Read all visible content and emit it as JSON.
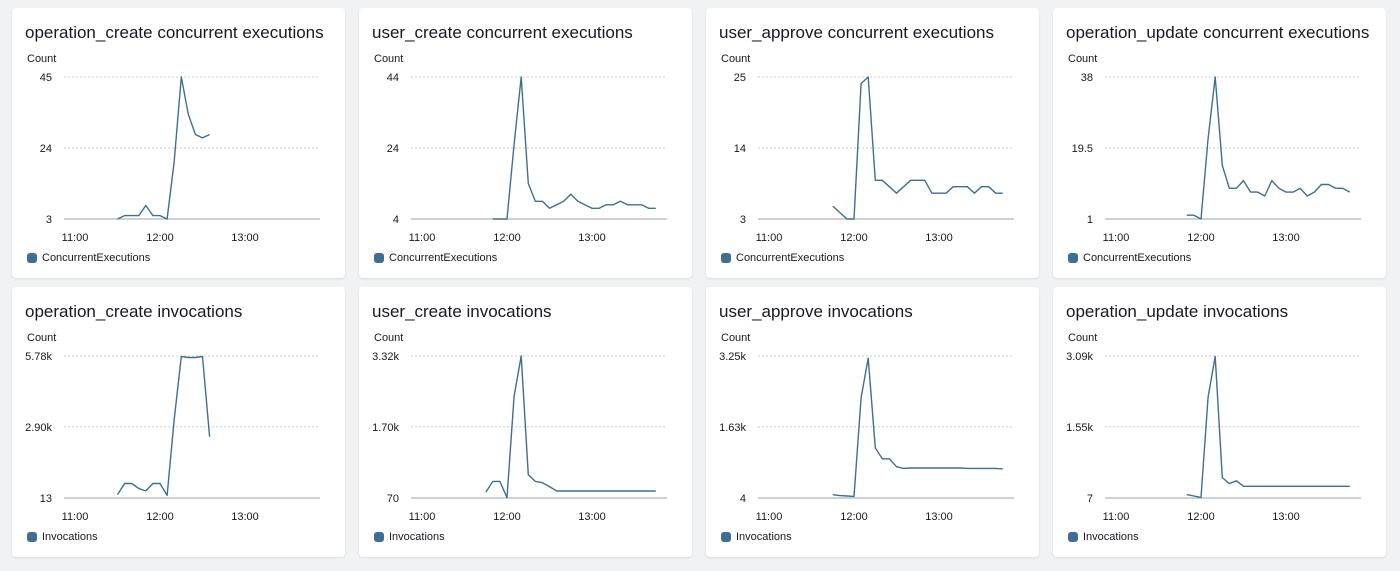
{
  "chart_data": [
    {
      "type": "line",
      "title": "operation_create concurrent executions",
      "ylabel": "Count",
      "ylim": [
        3,
        45
      ],
      "y_ticks": [
        "45",
        "24",
        "3"
      ],
      "y_tick_values": [
        45,
        24,
        3
      ],
      "xlim": [
        "10:48",
        "13:56"
      ],
      "x_ticks": [
        "11:00",
        "12:00",
        "13:00"
      ],
      "grid": true,
      "legend": "bottom-left",
      "color": "#3f6e94",
      "series": [
        {
          "name": "ConcurrentExecutions",
          "x": [
            "11:30",
            "11:35",
            "11:40",
            "11:45",
            "11:50",
            "11:55",
            "12:00",
            "12:05",
            "12:10",
            "12:15",
            "12:20",
            "12:25",
            "12:30",
            "12:35"
          ],
          "y": [
            3,
            4,
            4,
            4,
            7,
            4,
            4,
            3,
            20,
            45,
            34,
            28,
            27,
            28
          ]
        }
      ]
    },
    {
      "type": "line",
      "title": "user_create concurrent executions",
      "ylabel": "Count",
      "ylim": [
        4,
        44
      ],
      "y_ticks": [
        "44",
        "24",
        "4"
      ],
      "y_tick_values": [
        44,
        24,
        4
      ],
      "xlim": [
        "10:48",
        "13:56"
      ],
      "x_ticks": [
        "11:00",
        "12:00",
        "13:00"
      ],
      "grid": true,
      "legend": "bottom-left",
      "color": "#3f6e94",
      "series": [
        {
          "name": "ConcurrentExecutions",
          "x": [
            "11:50",
            "11:55",
            "12:00",
            "12:05",
            "12:10",
            "12:15",
            "12:20",
            "12:25",
            "12:30",
            "12:35",
            "12:40",
            "12:45",
            "12:50",
            "12:55",
            "13:00",
            "13:05",
            "13:10",
            "13:15",
            "13:20",
            "13:25",
            "13:30",
            "13:35",
            "13:40",
            "13:45"
          ],
          "y": [
            4,
            4,
            4,
            25,
            44,
            14,
            9,
            9,
            7,
            8,
            9,
            11,
            9,
            8,
            7,
            7,
            8,
            8,
            9,
            8,
            8,
            8,
            7,
            7
          ]
        }
      ]
    },
    {
      "type": "line",
      "title": "user_approve concurrent executions",
      "ylabel": "Count",
      "ylim": [
        3,
        25
      ],
      "y_ticks": [
        "25",
        "14",
        "3"
      ],
      "y_tick_values": [
        25,
        14,
        3
      ],
      "xlim": [
        "10:48",
        "13:56"
      ],
      "x_ticks": [
        "11:00",
        "12:00",
        "13:00"
      ],
      "grid": true,
      "legend": "bottom-left",
      "color": "#3f6e94",
      "series": [
        {
          "name": "ConcurrentExecutions",
          "x": [
            "11:45",
            "11:50",
            "11:55",
            "12:00",
            "12:05",
            "12:10",
            "12:15",
            "12:20",
            "12:25",
            "12:30",
            "12:35",
            "12:40",
            "12:45",
            "12:50",
            "12:55",
            "13:00",
            "13:05",
            "13:10",
            "13:15",
            "13:20",
            "13:25",
            "13:30",
            "13:35",
            "13:40",
            "13:45"
          ],
          "y": [
            5,
            4,
            3,
            3,
            24,
            25,
            9,
            9,
            8,
            7,
            8,
            9,
            9,
            9,
            7,
            7,
            7,
            8,
            8,
            8,
            7,
            8,
            8,
            7,
            7
          ]
        }
      ]
    },
    {
      "type": "line",
      "title": "operation_update concurrent executions",
      "ylabel": "Count",
      "ylim": [
        1,
        38
      ],
      "y_ticks": [
        "38",
        "19.5",
        "1"
      ],
      "y_tick_values": [
        38,
        19.5,
        1
      ],
      "xlim": [
        "10:48",
        "13:56"
      ],
      "x_ticks": [
        "11:00",
        "12:00",
        "13:00"
      ],
      "grid": true,
      "legend": "bottom-left",
      "color": "#3f6e94",
      "series": [
        {
          "name": "ConcurrentExecutions",
          "x": [
            "11:50",
            "11:55",
            "12:00",
            "12:05",
            "12:10",
            "12:15",
            "12:20",
            "12:25",
            "12:30",
            "12:35",
            "12:40",
            "12:45",
            "12:50",
            "12:55",
            "13:00",
            "13:05",
            "13:10",
            "13:15",
            "13:20",
            "13:25",
            "13:30",
            "13:35",
            "13:40",
            "13:45"
          ],
          "y": [
            2,
            2,
            1,
            22,
            38,
            15,
            9,
            9,
            11,
            8,
            8,
            7,
            11,
            9,
            8,
            8,
            9,
            7,
            8,
            10,
            10,
            9,
            9,
            8
          ]
        }
      ]
    },
    {
      "type": "line",
      "title": "operation_create invocations",
      "ylabel": "Count",
      "ylim": [
        13,
        5780
      ],
      "y_ticks": [
        "5.78k",
        "2.90k",
        "13"
      ],
      "y_tick_values": [
        5780,
        2900,
        13
      ],
      "xlim": [
        "10:48",
        "13:56"
      ],
      "x_ticks": [
        "11:00",
        "12:00",
        "13:00"
      ],
      "grid": true,
      "legend": "bottom-left",
      "color": "#3f6e94",
      "series": [
        {
          "name": "Invocations",
          "x": [
            "11:30",
            "11:35",
            "11:40",
            "11:45",
            "11:50",
            "11:55",
            "12:00",
            "12:05",
            "12:10",
            "12:15",
            "12:20",
            "12:25",
            "12:30",
            "12:35"
          ],
          "y": [
            150,
            600,
            600,
            400,
            300,
            600,
            600,
            120,
            3200,
            5760,
            5720,
            5720,
            5760,
            2500
          ]
        }
      ]
    },
    {
      "type": "line",
      "title": "user_create invocations",
      "ylabel": "Count",
      "ylim": [
        70,
        3320
      ],
      "y_ticks": [
        "3.32k",
        "1.70k",
        "70"
      ],
      "y_tick_values": [
        3320,
        1700,
        70
      ],
      "xlim": [
        "10:48",
        "13:56"
      ],
      "x_ticks": [
        "11:00",
        "12:00",
        "13:00"
      ],
      "grid": true,
      "legend": "bottom-left",
      "color": "#3f6e94",
      "series": [
        {
          "name": "Invocations",
          "x": [
            "11:45",
            "11:50",
            "11:55",
            "12:00",
            "12:05",
            "12:10",
            "12:15",
            "12:20",
            "12:25",
            "12:30",
            "12:35",
            "12:40",
            "12:45",
            "12:50",
            "12:55",
            "13:00",
            "13:05",
            "13:10",
            "13:15",
            "13:20",
            "13:25",
            "13:30",
            "13:35",
            "13:40",
            "13:45"
          ],
          "y": [
            200,
            450,
            450,
            80,
            2400,
            3320,
            600,
            450,
            420,
            330,
            230,
            230,
            230,
            230,
            230,
            230,
            230,
            230,
            230,
            230,
            230,
            230,
            230,
            230,
            230
          ]
        }
      ]
    },
    {
      "type": "line",
      "title": "user_approve invocations",
      "ylabel": "Count",
      "ylim": [
        4,
        3250
      ],
      "y_ticks": [
        "3.25k",
        "1.63k",
        "4"
      ],
      "y_tick_values": [
        3250,
        1630,
        4
      ],
      "xlim": [
        "10:48",
        "13:56"
      ],
      "x_ticks": [
        "11:00",
        "12:00",
        "13:00"
      ],
      "grid": true,
      "legend": "bottom-left",
      "color": "#3f6e94",
      "series": [
        {
          "name": "Invocations",
          "x": [
            "11:45",
            "11:50",
            "11:55",
            "12:00",
            "12:05",
            "12:10",
            "12:15",
            "12:20",
            "12:25",
            "12:30",
            "12:35",
            "12:40",
            "12:45",
            "12:50",
            "12:55",
            "13:00",
            "13:05",
            "13:10",
            "13:15",
            "13:20",
            "13:25",
            "13:30",
            "13:35",
            "13:40",
            "13:45"
          ],
          "y": [
            80,
            60,
            50,
            40,
            2300,
            3200,
            1150,
            900,
            900,
            720,
            680,
            690,
            690,
            690,
            690,
            690,
            690,
            690,
            690,
            680,
            680,
            680,
            680,
            680,
            670
          ]
        }
      ]
    },
    {
      "type": "line",
      "title": "operation_update invocations",
      "ylabel": "Count",
      "ylim": [
        7,
        3090
      ],
      "y_ticks": [
        "3.09k",
        "1.55k",
        "7"
      ],
      "y_tick_values": [
        3090,
        1550,
        7
      ],
      "xlim": [
        "10:48",
        "13:56"
      ],
      "x_ticks": [
        "11:00",
        "12:00",
        "13:00"
      ],
      "grid": true,
      "legend": "bottom-left",
      "color": "#3f6e94",
      "series": [
        {
          "name": "Invocations",
          "x": [
            "11:50",
            "11:55",
            "12:00",
            "12:05",
            "12:10",
            "12:15",
            "12:20",
            "12:25",
            "12:30",
            "12:35",
            "12:40",
            "12:45",
            "12:50",
            "12:55",
            "13:00",
            "13:05",
            "13:10",
            "13:15",
            "13:20",
            "13:25",
            "13:30",
            "13:35",
            "13:40",
            "13:45"
          ],
          "y": [
            80,
            50,
            20,
            2200,
            3080,
            450,
            320,
            380,
            260,
            260,
            260,
            260,
            260,
            260,
            260,
            260,
            260,
            260,
            260,
            260,
            260,
            260,
            260,
            260
          ]
        }
      ]
    }
  ]
}
